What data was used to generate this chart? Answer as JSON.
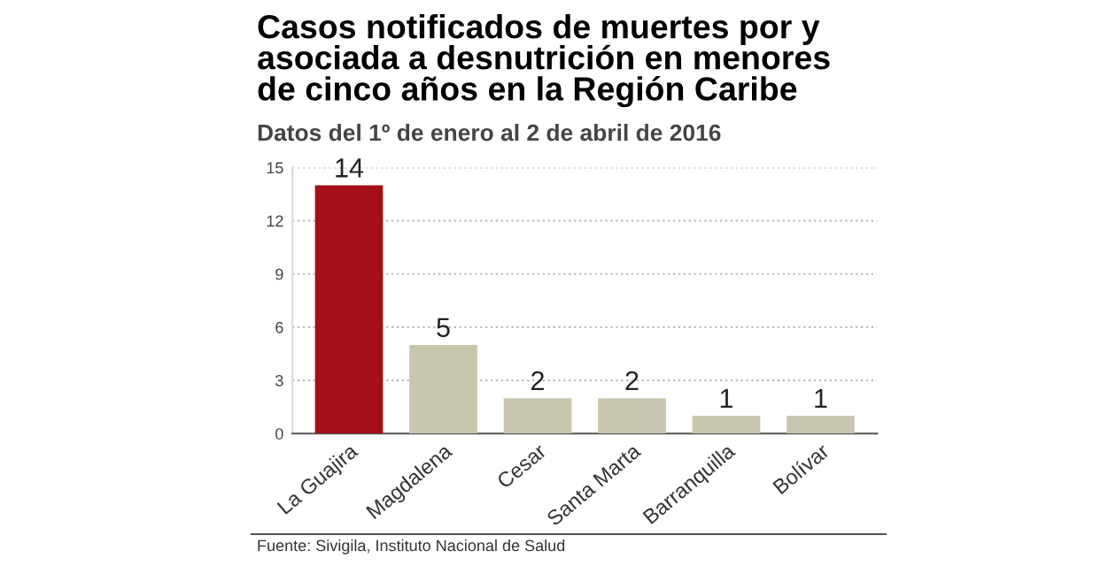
{
  "chart_data": {
    "type": "bar",
    "title": "Casos notificados de muertes por y\nasociada a desnutrición en menores\nde cinco años en la Región Caribe",
    "subtitle": "Datos del 1º de enero al 2 de abril de 2016",
    "categories": [
      "La Guajira",
      "Magdalena",
      "Cesar",
      "Santa Marta",
      "Barranquilla",
      "Bolívar"
    ],
    "values": [
      14,
      5,
      2,
      2,
      1,
      1
    ],
    "colors": [
      "#a50f17",
      "#c9c6b0",
      "#c9c6b0",
      "#c9c6b0",
      "#c9c6b0",
      "#c9c6b0"
    ],
    "ylim": [
      0,
      15
    ],
    "yticks": [
      0,
      3,
      6,
      9,
      12,
      15
    ],
    "grid": "y",
    "data_labels": true,
    "annotations": [
      "Fuente: Sivigila, Instituto Nacional de Salud"
    ]
  }
}
